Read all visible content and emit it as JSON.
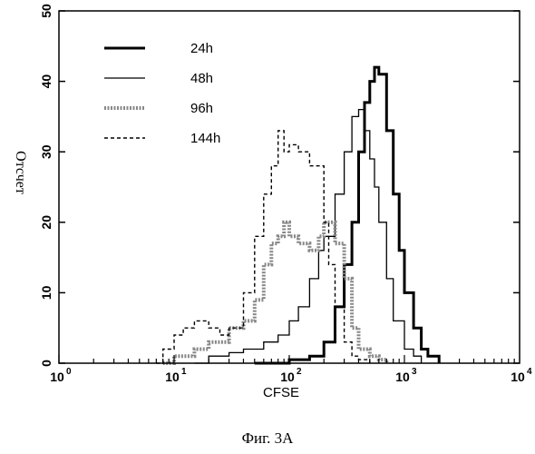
{
  "chart_data": {
    "type": "line",
    "xlabel": "CFSE",
    "ylabel": "Отсчет",
    "x_scale": "log",
    "xlim": [
      1,
      10000
    ],
    "ylim": [
      0,
      50
    ],
    "x_ticks": [
      {
        "base": "10",
        "exp": "0"
      },
      {
        "base": "10",
        "exp": "1"
      },
      {
        "base": "10",
        "exp": "2"
      },
      {
        "base": "10",
        "exp": "3"
      },
      {
        "base": "10",
        "exp": "4"
      }
    ],
    "y_ticks": [
      "0",
      "10",
      "20",
      "30",
      "40",
      "50"
    ],
    "legend_position": "top-left",
    "series": [
      {
        "name": "24h",
        "style": "thick-solid",
        "color": "#000000",
        "x": [
          50,
          100,
          150,
          200,
          250,
          300,
          350,
          400,
          450,
          500,
          550,
          600,
          700,
          800,
          900,
          1000,
          1200,
          1400,
          1600,
          2000
        ],
        "y": [
          0,
          0.5,
          1,
          3,
          8,
          14,
          20,
          30,
          37,
          40,
          42,
          41,
          33,
          24,
          16,
          10,
          5,
          2,
          1,
          0
        ]
      },
      {
        "name": "48h",
        "style": "thin-solid",
        "color": "#000000",
        "x": [
          15,
          20,
          30,
          40,
          60,
          80,
          100,
          120,
          150,
          180,
          200,
          250,
          300,
          350,
          400,
          450,
          500,
          550,
          600,
          700,
          800,
          1000,
          1200,
          1400
        ],
        "y": [
          0,
          1,
          1.5,
          2,
          3,
          4,
          6,
          8,
          12,
          16,
          18,
          24,
          30,
          35,
          36,
          33,
          29,
          25,
          20,
          12,
          6,
          2,
          1,
          0
        ]
      },
      {
        "name": "96h",
        "style": "gray-dashed-thick",
        "color": "#888888",
        "x": [
          8,
          10,
          15,
          20,
          30,
          40,
          50,
          60,
          70,
          80,
          90,
          100,
          120,
          150,
          180,
          200,
          250,
          300,
          350,
          400,
          500,
          600,
          700
        ],
        "y": [
          0,
          1,
          2,
          3,
          5,
          6,
          9,
          14,
          17,
          18,
          20,
          18,
          17,
          16,
          18,
          20,
          17,
          12,
          5,
          2,
          1,
          0.5,
          0
        ]
      },
      {
        "name": "144h",
        "style": "dashed",
        "color": "#000000",
        "x": [
          7,
          8,
          10,
          12,
          15,
          20,
          25,
          30,
          40,
          50,
          60,
          70,
          80,
          90,
          100,
          120,
          150,
          180,
          200,
          220,
          250,
          300,
          350,
          400,
          500
        ],
        "y": [
          0,
          2,
          4,
          5,
          6,
          5,
          4,
          5,
          10,
          18,
          24,
          28,
          33,
          30,
          31,
          30,
          28,
          28,
          20,
          14,
          8,
          3,
          1,
          0.5,
          0
        ]
      }
    ]
  },
  "caption": "Фиг. 3A"
}
